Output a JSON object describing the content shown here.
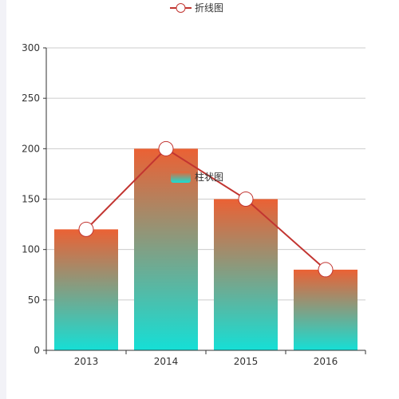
{
  "chart_data": {
    "type": "bar",
    "categories": [
      "2013",
      "2014",
      "2015",
      "2016"
    ],
    "series": [
      {
        "name": "柱状图",
        "type": "bar",
        "values": [
          120,
          200,
          150,
          80
        ],
        "gradient_top": "#eb6134",
        "gradient_bottom": "#15dfd6"
      },
      {
        "name": "折线图",
        "type": "line",
        "values": [
          120,
          200,
          150,
          80
        ],
        "color": "#c23531",
        "marker_fill": "#ffffff"
      }
    ],
    "y_ticks": [
      "0",
      "50",
      "100",
      "150",
      "200",
      "250",
      "300"
    ],
    "ylim": [
      0,
      300
    ],
    "grid": true,
    "grid_color": "#cccccc",
    "axis_color": "#333333",
    "legend_line_position": "top-center",
    "legend_bar_position": "center"
  }
}
